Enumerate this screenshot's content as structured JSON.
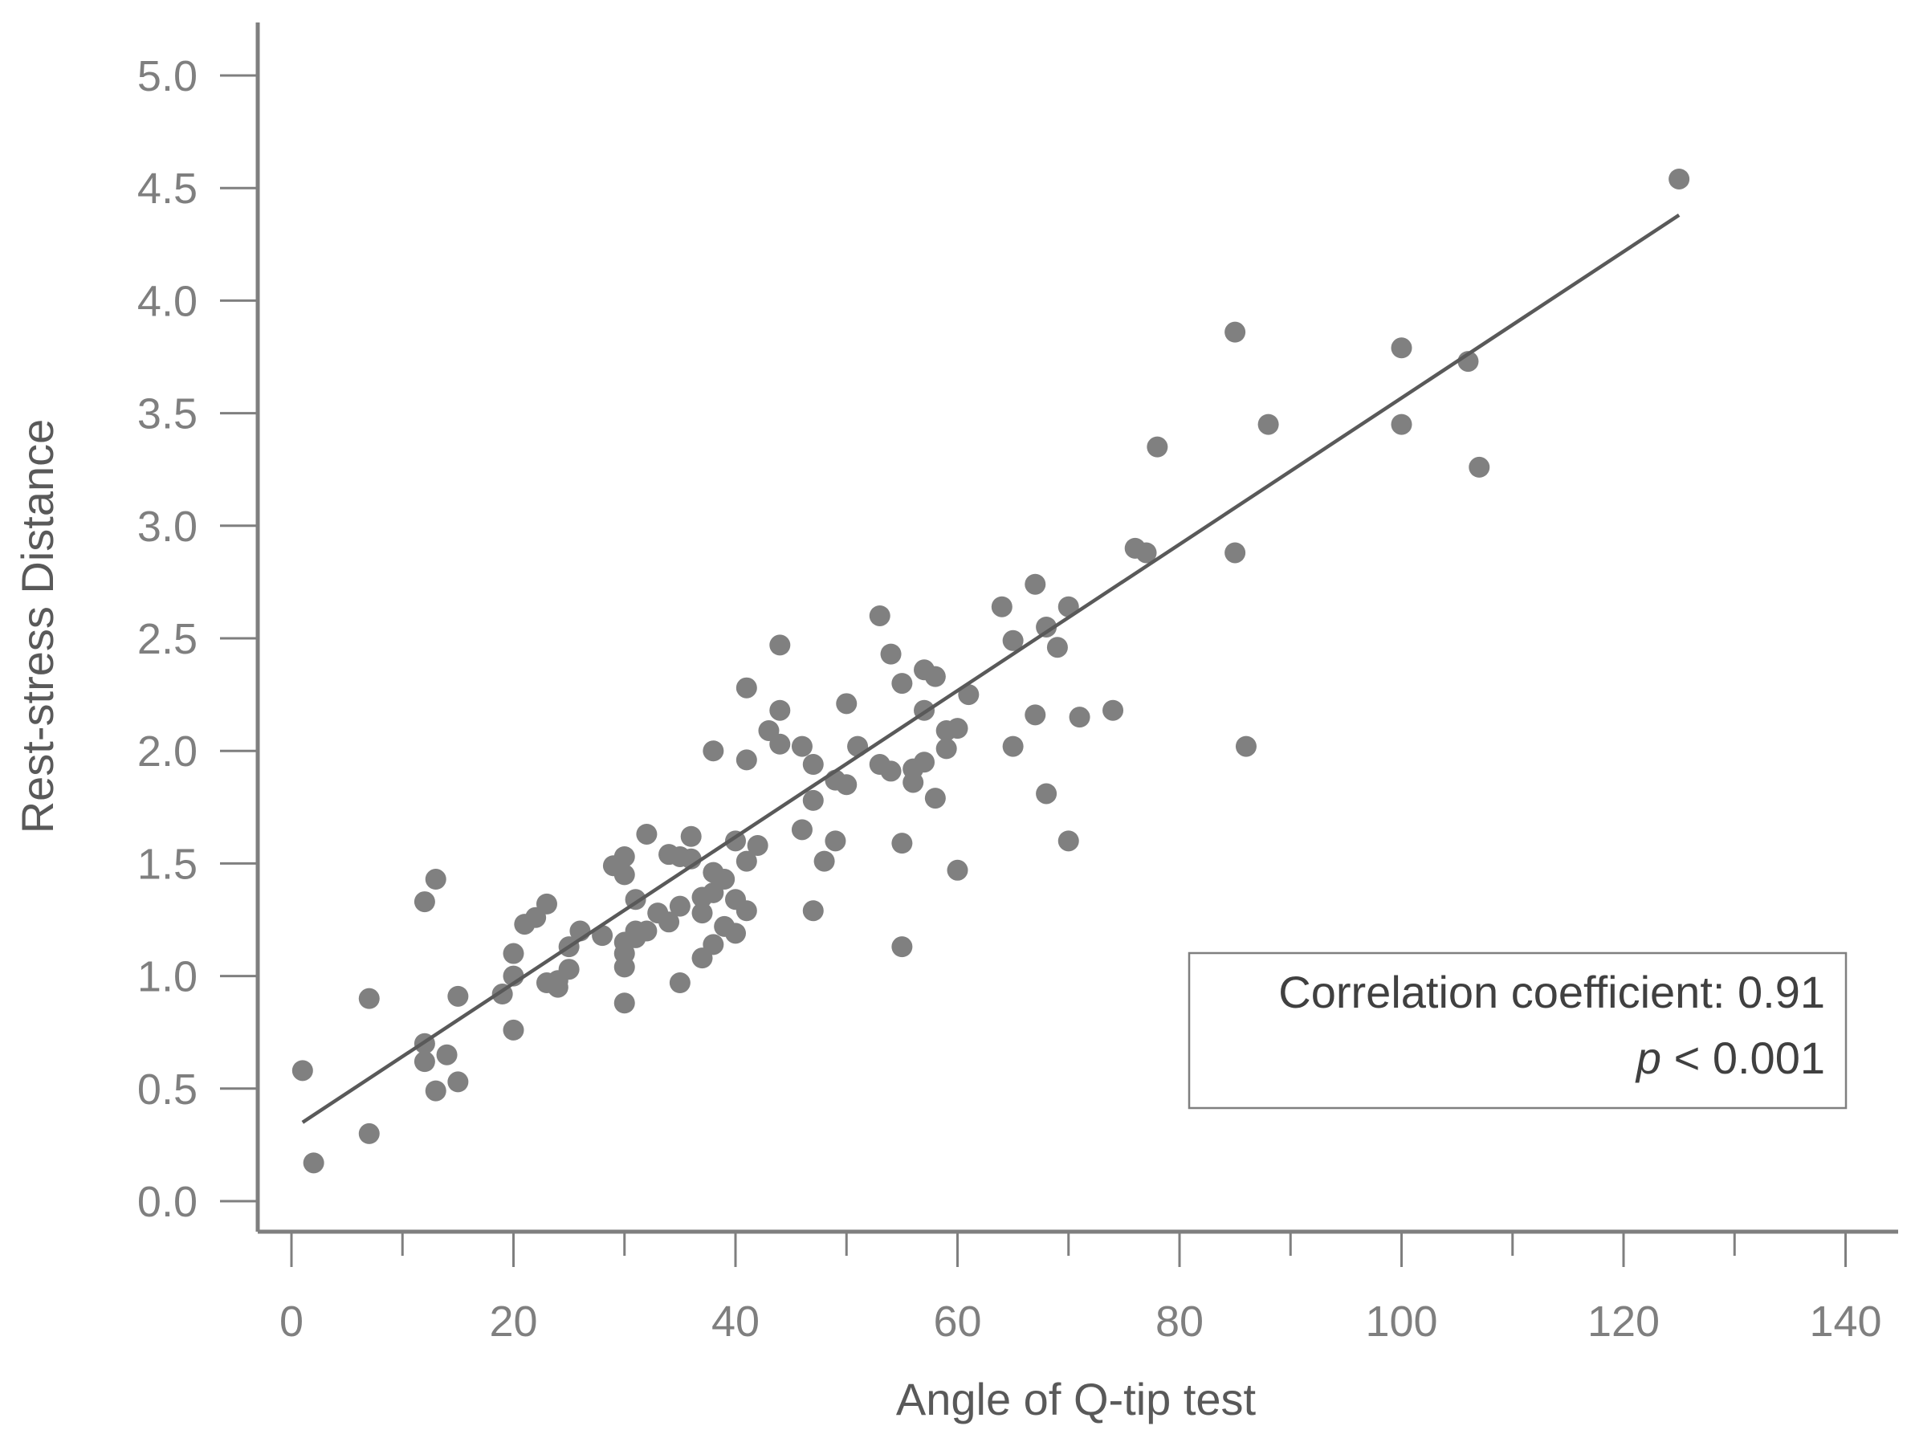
{
  "chart_data": {
    "type": "scatter",
    "xlabel": "Angle of Q-tip test",
    "ylabel": "Rest-stress Distance",
    "xlim": [
      0,
      140
    ],
    "ylim": [
      0,
      5
    ],
    "x_ticks": [
      0,
      20,
      40,
      60,
      80,
      100,
      120,
      140
    ],
    "y_ticks": [
      0.0,
      0.5,
      1.0,
      1.5,
      2.0,
      2.5,
      3.0,
      3.5,
      4.0,
      4.5,
      5.0
    ],
    "x_tick_labels": [
      "0",
      "20",
      "40",
      "60",
      "80",
      "100",
      "120",
      "140"
    ],
    "y_tick_labels": [
      "0.0",
      "0.5",
      "1.0",
      "1.5",
      "2.0",
      "2.5",
      "3.0",
      "3.5",
      "4.0",
      "4.5",
      "5.0"
    ],
    "grid": false,
    "point_color": "#808080",
    "line_color": "#595959",
    "trendline": {
      "x": [
        1,
        125
      ],
      "y": [
        0.35,
        4.38
      ]
    },
    "annotation": {
      "line1": "Correlation coefficient: 0.91",
      "line2_italic": "p",
      "line2_rest": " < 0.001"
    },
    "points": [
      [
        1,
        0.58
      ],
      [
        2,
        0.17
      ],
      [
        7,
        0.9
      ],
      [
        7,
        0.3
      ],
      [
        12,
        1.33
      ],
      [
        12,
        0.7
      ],
      [
        12,
        0.62
      ],
      [
        13,
        1.43
      ],
      [
        13,
        0.49
      ],
      [
        14,
        0.65
      ],
      [
        15,
        0.91
      ],
      [
        15,
        0.53
      ],
      [
        19,
        0.92
      ],
      [
        20,
        1.1
      ],
      [
        20,
        1.0
      ],
      [
        20,
        0.76
      ],
      [
        21,
        1.23
      ],
      [
        22,
        1.26
      ],
      [
        23,
        1.32
      ],
      [
        23,
        0.97
      ],
      [
        24,
        0.95
      ],
      [
        24,
        0.98
      ],
      [
        25,
        1.13
      ],
      [
        25,
        1.03
      ],
      [
        26,
        1.2
      ],
      [
        28,
        1.18
      ],
      [
        29,
        1.49
      ],
      [
        30,
        1.53
      ],
      [
        30,
        1.45
      ],
      [
        30,
        1.15
      ],
      [
        30,
        1.1
      ],
      [
        30,
        1.04
      ],
      [
        30,
        0.88
      ],
      [
        31,
        1.34
      ],
      [
        31,
        1.2
      ],
      [
        31,
        1.17
      ],
      [
        32,
        1.63
      ],
      [
        32,
        1.2
      ],
      [
        33,
        1.28
      ],
      [
        34,
        1.54
      ],
      [
        34,
        1.24
      ],
      [
        35,
        1.53
      ],
      [
        35,
        1.31
      ],
      [
        35,
        0.97
      ],
      [
        36,
        1.62
      ],
      [
        36,
        1.52
      ],
      [
        37,
        1.35
      ],
      [
        37,
        1.28
      ],
      [
        37,
        1.08
      ],
      [
        38,
        2.0
      ],
      [
        38,
        1.46
      ],
      [
        38,
        1.37
      ],
      [
        38,
        1.14
      ],
      [
        39,
        1.43
      ],
      [
        39,
        1.22
      ],
      [
        40,
        1.6
      ],
      [
        40,
        1.34
      ],
      [
        40,
        1.19
      ],
      [
        41,
        2.28
      ],
      [
        41,
        1.96
      ],
      [
        41,
        1.51
      ],
      [
        41,
        1.29
      ],
      [
        42,
        1.58
      ],
      [
        43,
        2.09
      ],
      [
        44,
        2.47
      ],
      [
        44,
        2.18
      ],
      [
        44,
        2.03
      ],
      [
        46,
        2.02
      ],
      [
        46,
        1.65
      ],
      [
        47,
        1.94
      ],
      [
        47,
        1.78
      ],
      [
        47,
        1.29
      ],
      [
        48,
        1.51
      ],
      [
        49,
        1.87
      ],
      [
        49,
        1.6
      ],
      [
        50,
        2.21
      ],
      [
        50,
        1.85
      ],
      [
        51,
        2.02
      ],
      [
        53,
        2.6
      ],
      [
        53,
        1.94
      ],
      [
        54,
        2.43
      ],
      [
        54,
        1.91
      ],
      [
        55,
        2.3
      ],
      [
        55,
        1.59
      ],
      [
        55,
        1.13
      ],
      [
        56,
        1.92
      ],
      [
        56,
        1.86
      ],
      [
        57,
        2.36
      ],
      [
        57,
        2.18
      ],
      [
        57,
        1.95
      ],
      [
        58,
        2.33
      ],
      [
        58,
        1.79
      ],
      [
        59,
        2.09
      ],
      [
        59,
        2.01
      ],
      [
        60,
        2.1
      ],
      [
        60,
        1.47
      ],
      [
        61,
        2.25
      ],
      [
        64,
        2.64
      ],
      [
        65,
        2.49
      ],
      [
        65,
        2.02
      ],
      [
        67,
        2.74
      ],
      [
        67,
        2.16
      ],
      [
        68,
        2.55
      ],
      [
        68,
        1.81
      ],
      [
        69,
        2.46
      ],
      [
        70,
        2.64
      ],
      [
        70,
        1.6
      ],
      [
        71,
        2.15
      ],
      [
        74,
        2.18
      ],
      [
        76,
        2.9
      ],
      [
        77,
        2.88
      ],
      [
        78,
        3.35
      ],
      [
        85,
        3.86
      ],
      [
        85,
        2.88
      ],
      [
        86,
        2.02
      ],
      [
        88,
        3.45
      ],
      [
        100,
        3.79
      ],
      [
        100,
        3.45
      ],
      [
        106,
        3.73
      ],
      [
        107,
        3.26
      ],
      [
        125,
        4.54
      ]
    ]
  }
}
